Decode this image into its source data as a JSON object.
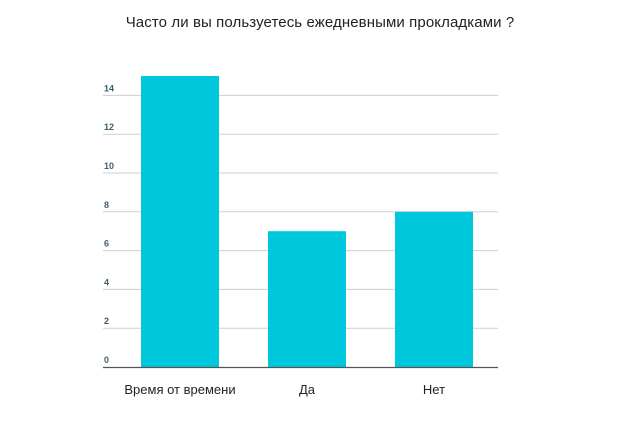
{
  "chart_data": {
    "type": "bar",
    "title": "Часто ли вы пользуетесь ежедневными прокладками ?",
    "xlabel": "",
    "ylabel": "",
    "categories": [
      "Время от времени",
      "Да",
      "Нет"
    ],
    "values": [
      15,
      7,
      8
    ],
    "yticks": [
      0,
      2,
      4,
      6,
      8,
      10,
      12,
      14
    ],
    "ylim": [
      0,
      14
    ],
    "grid": true,
    "bar_color": "#00c8dc",
    "grid_color": "#cfcfcf",
    "axis_color": "#555555"
  }
}
